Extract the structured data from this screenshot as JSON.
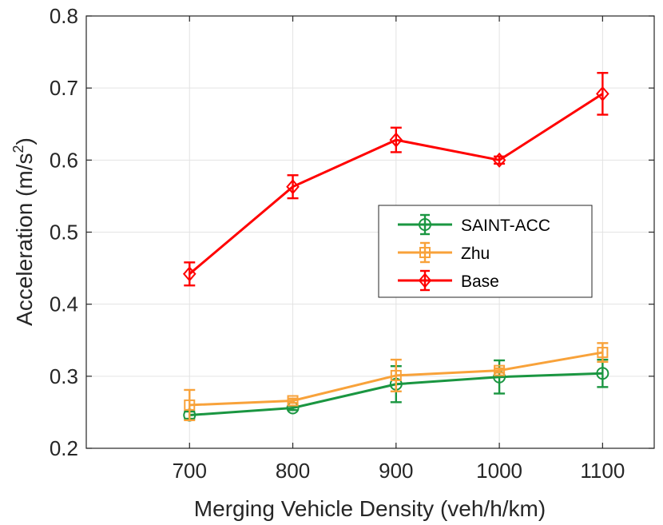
{
  "chart_data": {
    "type": "line",
    "xlabel": "Merging Vehicle Density (veh/h/km)",
    "ylabel": "Acceleration (m/s",
    "ylabel_superscript": "2",
    "ylabel_suffix": ")",
    "xlim": [
      600,
      1150
    ],
    "ylim": [
      0.2,
      0.8
    ],
    "x_ticks": [
      700,
      800,
      900,
      1000,
      1100
    ],
    "y_ticks": [
      0.2,
      0.3,
      0.4,
      0.5,
      0.6,
      0.7,
      0.8
    ],
    "y_tick_labels": [
      "0.2",
      "0.3",
      "0.4",
      "0.5",
      "0.6",
      "0.7",
      "0.8"
    ],
    "grid": true,
    "legend_position": "center-right",
    "x": [
      700,
      800,
      900,
      1000,
      1100
    ],
    "series": [
      {
        "name": "SAINT-ACC",
        "color": "#1a9641",
        "marker": "circle",
        "values": [
          0.246,
          0.256,
          0.289,
          0.299,
          0.304
        ],
        "errors": [
          0.005,
          0.003,
          0.025,
          0.023,
          0.019
        ]
      },
      {
        "name": "Zhu",
        "color": "#f8a23a",
        "marker": "square",
        "values": [
          0.26,
          0.266,
          0.301,
          0.308,
          0.333
        ],
        "errors": [
          0.021,
          0.003,
          0.022,
          0.003,
          0.013
        ]
      },
      {
        "name": "Base",
        "color": "#ff0000",
        "marker": "diamond",
        "values": [
          0.442,
          0.563,
          0.628,
          0.6,
          0.692
        ],
        "errors": [
          0.016,
          0.016,
          0.017,
          0.005,
          0.029
        ]
      }
    ]
  }
}
